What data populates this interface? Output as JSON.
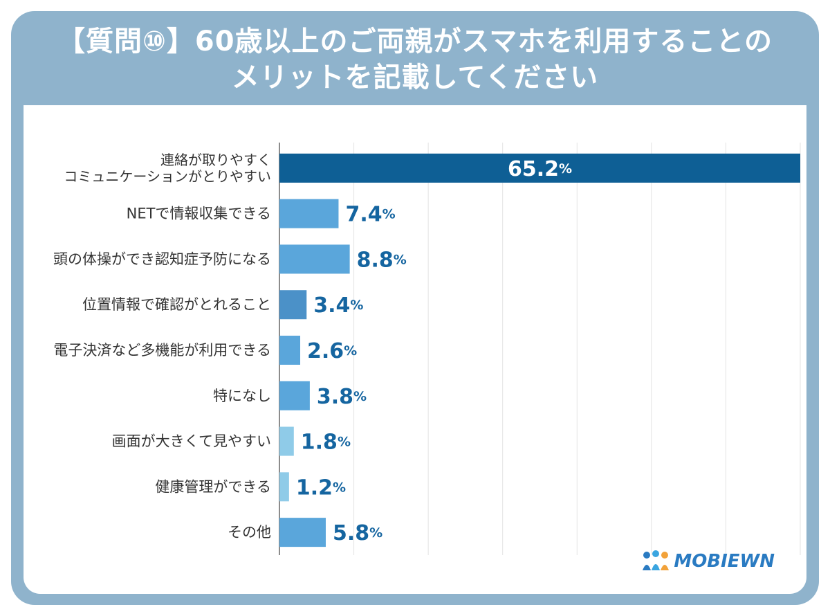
{
  "title": {
    "line1": "【質問⑩】60歳以上のご両親がスマホを利用することの",
    "line2": "メリットを記載してください"
  },
  "logo": {
    "text": "MOBIEWN"
  },
  "chart_data": {
    "type": "bar",
    "orientation": "horizontal",
    "categories": [
      [
        "連絡が取りやすく",
        "コミュニケーションがとりやすい"
      ],
      [
        "NETで情報収集できる"
      ],
      [
        "頭の体操ができ認知症予防になる"
      ],
      [
        "位置情報で確認がとれること"
      ],
      [
        "電子決済など多機能が利用できる"
      ],
      [
        "特になし"
      ],
      [
        "画面が大きくて見やすい"
      ],
      [
        "健康管理ができる"
      ],
      [
        "その他"
      ]
    ],
    "values": [
      65.2,
      7.4,
      8.8,
      3.4,
      2.6,
      3.8,
      1.8,
      1.2,
      5.8
    ],
    "value_suffix": "%",
    "xlim": [
      0,
      65.2
    ],
    "grid": true,
    "colors": [
      "#0e5f95",
      "#5aa6db",
      "#5aa6db",
      "#4b91c8",
      "#5aa6db",
      "#5aa6db",
      "#8fcbe8",
      "#8fcbe8",
      "#5aa6db"
    ],
    "label_color": "#1565a0"
  }
}
